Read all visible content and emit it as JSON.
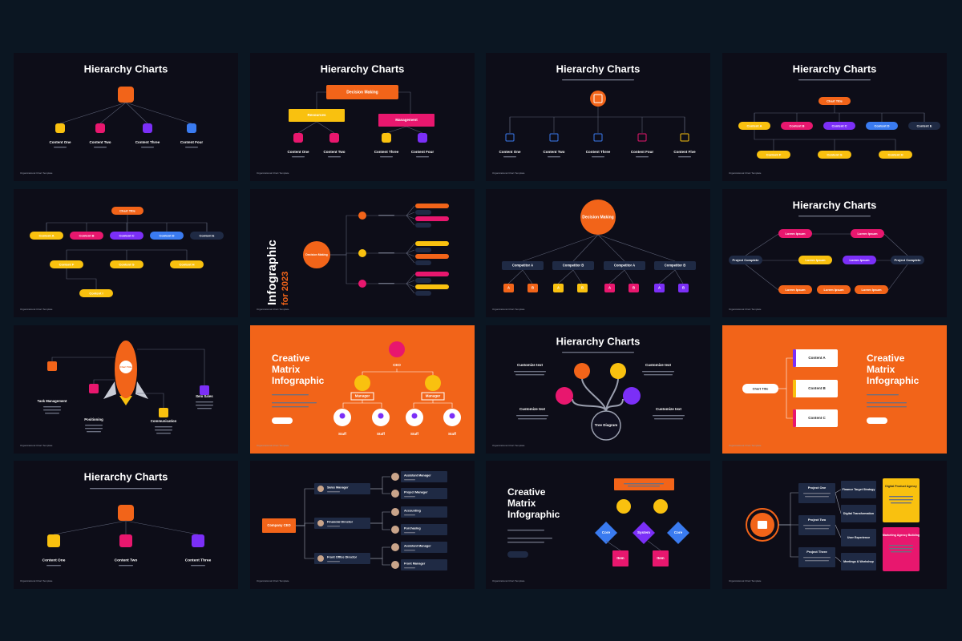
{
  "footer": "Organizational Chart Template",
  "slides": [
    {
      "title": "Hierarchy Charts",
      "items": [
        "Content One",
        "Content Two",
        "Content Three",
        "Content Four"
      ]
    },
    {
      "title": "Hierarchy Charts",
      "top": "Decision Making",
      "mid": [
        "Resources",
        "Management"
      ],
      "items": [
        "Content One",
        "Content Two",
        "Content Three",
        "Content Four"
      ]
    },
    {
      "title": "Hierarchy Charts",
      "items": [
        "Content One",
        "Content Two",
        "Content Three",
        "Content Four",
        "Content Five"
      ]
    },
    {
      "title": "Hierarchy Charts",
      "top": "Chart Title",
      "items": [
        "Content A",
        "Content B",
        "Content C",
        "Content D",
        "Content E"
      ],
      "bottom": [
        "Content F",
        "Content G",
        "Content H"
      ]
    },
    {
      "top": "Chart Title",
      "items": [
        "Content A",
        "Content B",
        "Content C",
        "Content D",
        "Content E"
      ],
      "mid": [
        "Content F",
        "Content G",
        "Content H"
      ],
      "bottom": "Content I"
    },
    {
      "title": "Infographic",
      "subtitle": "for 2023",
      "top": "Decision Making"
    },
    {
      "top": "Decision Making",
      "items": [
        "Competitor A",
        "Competitor B",
        "Competitor A",
        "Competitor B"
      ],
      "letters": [
        "A",
        "B",
        "A",
        "B",
        "A",
        "B",
        "A",
        "B"
      ]
    },
    {
      "title": "Hierarchy Charts",
      "items": [
        "Lorem Ipsum",
        "Lorem Ipsum",
        "Project Complete",
        "Lorem Ipsum",
        "Lorem Ipsum",
        "Project Complete",
        "Lorem Ipsum",
        "Lorem Ipsum",
        "Lorem Ipsum"
      ]
    },
    {
      "top": "Chart Title",
      "items": [
        "Task Management",
        "Positioning",
        "Communication",
        "Item Sales"
      ]
    },
    {
      "title_lines": [
        "Creative",
        "Matrix",
        "Infographic"
      ],
      "top": "CEO",
      "mid": [
        "Manager",
        "Manager"
      ],
      "items": [
        "Staff",
        "Staff",
        "Staff",
        "Staff"
      ]
    },
    {
      "title": "Hierarchy Charts",
      "items": [
        "Customize text",
        "Customize text",
        "Customize text",
        "Customize text"
      ],
      "center": "Tree Diagram"
    },
    {
      "title_lines": [
        "Creative",
        "Matrix",
        "Infographic"
      ],
      "top": "Chart Title",
      "items": [
        "Content A",
        "Content B",
        "Content C"
      ]
    },
    {
      "title": "Hierarchy Charts",
      "items": [
        "Content One",
        "Content Two",
        "Content Three"
      ]
    },
    {
      "top": "Company CEO",
      "mid": [
        "Sales Manager",
        "Financial Director",
        "Front Office Director"
      ],
      "items": [
        "Assistant Manager",
        "Project Manager",
        "Accounting",
        "Purchasing",
        "Assistant Manager",
        "Front Manager"
      ]
    },
    {
      "title_lines": [
        "Creative",
        "Matrix",
        "Infographic"
      ],
      "items": [
        "Core",
        "System",
        "Core"
      ],
      "bottom": [
        "Item",
        "Item"
      ]
    },
    {
      "items": [
        "Project One",
        "Project Two",
        "Project Three"
      ],
      "mid": [
        "Finance Target Strategy",
        "Digital Transformation",
        "User Experience",
        "Meetings & Workshop"
      ],
      "bottom": [
        "Digital Product Agency",
        "Marketing Agency Building"
      ]
    }
  ]
}
